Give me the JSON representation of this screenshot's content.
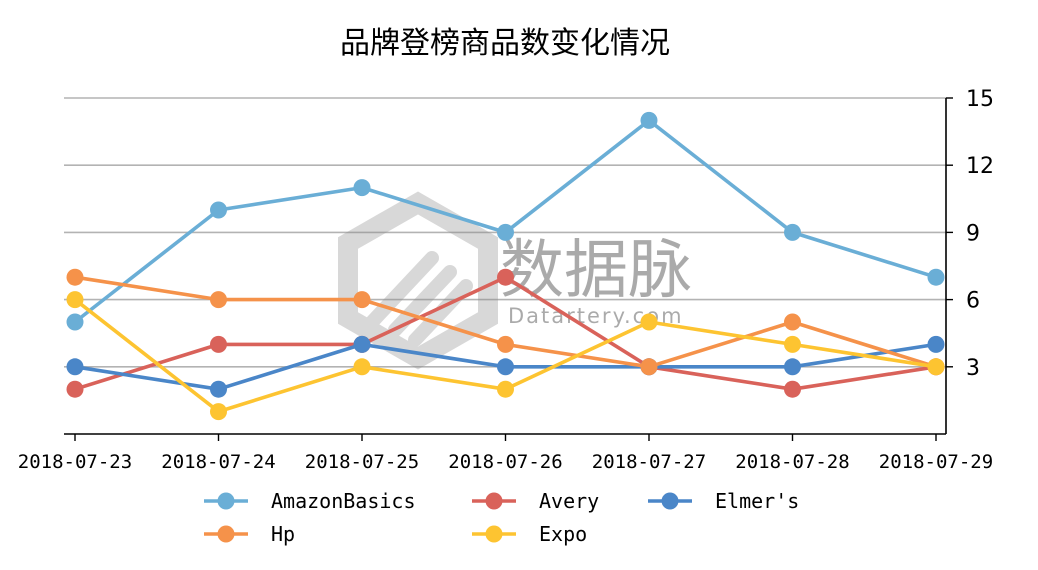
{
  "chart_data": {
    "type": "line",
    "title": "品牌登榜商品数变化情况",
    "xlabel": "",
    "ylabel": "",
    "categories": [
      "2018-07-23",
      "2018-07-24",
      "2018-07-25",
      "2018-07-26",
      "2018-07-27",
      "2018-07-28",
      "2018-07-29"
    ],
    "y_ticks": [
      3,
      6,
      9,
      12,
      15
    ],
    "ylim": [
      0,
      15
    ],
    "y_axis_position": "right",
    "grid": "horizontal",
    "legend_position": "bottom-center",
    "series": [
      {
        "name": "AmazonBasics",
        "color": "#6aaed6",
        "values": [
          5,
          10,
          11,
          9,
          14,
          9,
          7
        ]
      },
      {
        "name": "Avery",
        "color": "#d9625a",
        "values": [
          2,
          4,
          4,
          7,
          3,
          2,
          3
        ]
      },
      {
        "name": "Elmer's",
        "color": "#4a86c8",
        "values": [
          3,
          2,
          4,
          3,
          3,
          3,
          4
        ]
      },
      {
        "name": "Hp",
        "color": "#f5924a",
        "values": [
          7,
          6,
          6,
          4,
          3,
          5,
          3
        ]
      },
      {
        "name": "Expo",
        "color": "#fdc431",
        "values": [
          6,
          1,
          3,
          2,
          5,
          4,
          3
        ]
      }
    ],
    "watermark": {
      "brand": "数据脉",
      "site": "Datartery.com"
    }
  }
}
